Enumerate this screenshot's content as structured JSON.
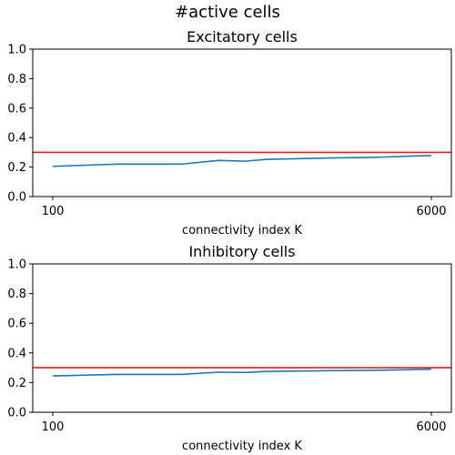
{
  "figure": {
    "title": "#active cells"
  },
  "chart_data": [
    {
      "type": "line",
      "title": "Excitatory cells",
      "xlabel": "connectivity index K",
      "ylabel": "",
      "x_ticks": [
        "100",
        "6000"
      ],
      "y_ticks": [
        "0.0",
        "0.2",
        "0.4",
        "0.6",
        "0.8",
        "1.0"
      ],
      "ylim": [
        0,
        1
      ],
      "grid": false,
      "series": [
        {
          "color": "#1f77b4",
          "x": [
            100,
            200,
            300,
            400,
            600,
            800,
            1000,
            2000,
            3000,
            4000,
            5000,
            6000
          ],
          "values": [
            0.205,
            0.22,
            0.22,
            0.22,
            0.245,
            0.24,
            0.252,
            0.262,
            0.265,
            0.27,
            0.275,
            0.278
          ]
        }
      ],
      "reference_line": {
        "y": 0.3,
        "color": "#e41a1c"
      }
    },
    {
      "type": "line",
      "title": "Inhibitory cells",
      "xlabel": "connectivity index K",
      "ylabel": "",
      "x_ticks": [
        "100",
        "6000"
      ],
      "y_ticks": [
        "0.0",
        "0.2",
        "0.4",
        "0.6",
        "0.8",
        "1.0"
      ],
      "ylim": [
        0,
        1
      ],
      "grid": false,
      "series": [
        {
          "color": "#1f77b4",
          "x": [
            100,
            200,
            300,
            400,
            600,
            800,
            1000,
            2000,
            3000,
            4000,
            5000,
            6000
          ],
          "values": [
            0.245,
            0.255,
            0.255,
            0.255,
            0.27,
            0.268,
            0.275,
            0.28,
            0.282,
            0.285,
            0.287,
            0.29
          ]
        }
      ],
      "reference_line": {
        "y": 0.3,
        "color": "#e41a1c"
      }
    }
  ]
}
